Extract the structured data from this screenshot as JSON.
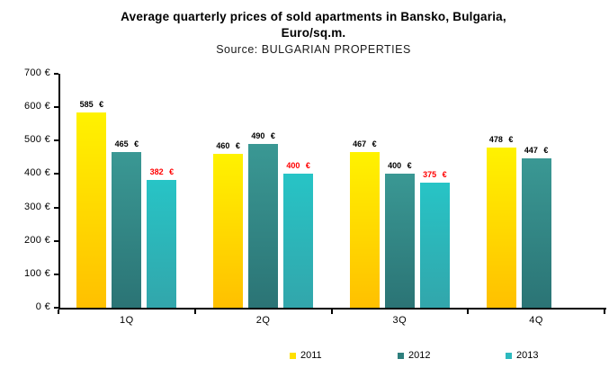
{
  "chart_data": {
    "type": "bar",
    "title": "Average quarterly prices of sold apartments in Bansko, Bulgaria, Euro/sq.m.",
    "title_lines": [
      "Average quarterly prices of sold apartments in Bansko, Bulgaria,",
      "Euro/sq.m."
    ],
    "subtitle": "Source: BULGARIAN PROPERTIES",
    "categories": [
      "1Q",
      "2Q",
      "3Q",
      "4Q"
    ],
    "series": [
      {
        "name": "2011",
        "values": [
          585,
          460,
          467,
          478
        ],
        "labels": [
          "585 €",
          "460 €",
          "467 €",
          "478 €"
        ],
        "label_color": "#000000",
        "gradient": [
          "#FFF200",
          "#FFC000"
        ],
        "legend_color": "#FFE000"
      },
      {
        "name": "2012",
        "values": [
          465,
          490,
          400,
          447
        ],
        "labels": [
          "465 €",
          "490 €",
          "400 €",
          "447 €"
        ],
        "label_color": "#000000",
        "gradient": [
          "#3A9894",
          "#2B7475"
        ],
        "legend_color": "#2E7F7D"
      },
      {
        "name": "2013",
        "values": [
          382,
          400,
          375,
          null
        ],
        "labels": [
          "382 €",
          "400 €",
          "375 €",
          null
        ],
        "label_color": "#FF0000",
        "gradient": [
          "#27C4C6",
          "#32A6AB"
        ],
        "legend_color": "#2CB9BE"
      }
    ],
    "y_ticks": [
      "0 €",
      "100 €",
      "200 €",
      "300 €",
      "400 €",
      "500 €",
      "600 €",
      "700 €"
    ],
    "ylim": [
      0,
      700
    ],
    "unit": "€",
    "grid": false,
    "legend_position": "bottom"
  }
}
